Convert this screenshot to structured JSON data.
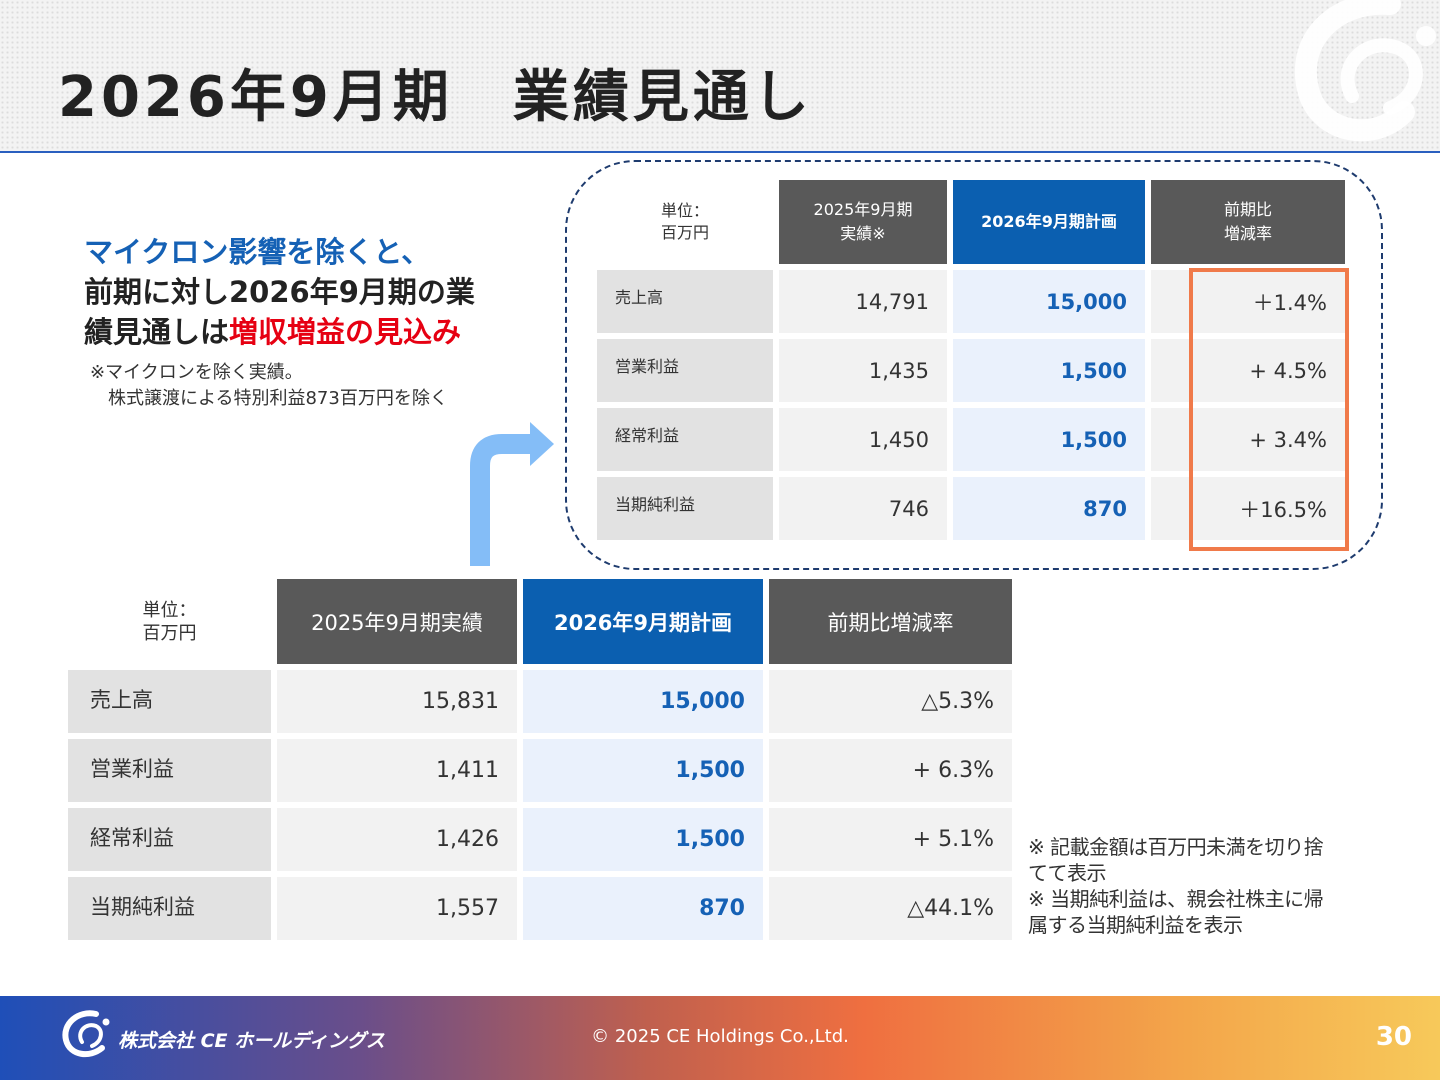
{
  "slide": {
    "title": "2026年9月期　業績見通し",
    "page_number": "30"
  },
  "callout": {
    "line1": "マイクロン影響を除くと、",
    "line2": "前期に対し2026年9月期の業",
    "line3_prefix": "績見通しは",
    "line3_emphasis": "増収増益の見込み",
    "note": "※マイクロンを除く実績。\n　株式譲渡による特別利益873百万円を除く"
  },
  "top_table": {
    "unit": "単位：\n百万円",
    "headers": [
      "2025年9月期\n実績※",
      "2026年9月期計画",
      "前期比\n増減率"
    ],
    "rows": [
      {
        "label": "売上高",
        "actual": "14,791",
        "plan": "15,000",
        "change": "＋1.4%"
      },
      {
        "label": "営業利益",
        "actual": "1,435",
        "plan": "1,500",
        "change": "+ 4.5%"
      },
      {
        "label": "経常利益",
        "actual": "1,450",
        "plan": "1,500",
        "change": "+ 3.4%"
      },
      {
        "label": "当期純利益",
        "actual": "746",
        "plan": "870",
        "change": "＋16.5%"
      }
    ]
  },
  "bottom_table": {
    "unit": "単位：\n百万円",
    "headers": [
      "2025年9月期実績",
      "2026年9月期計画",
      "前期比増減率"
    ],
    "rows": [
      {
        "label": "売上高",
        "actual": "15,831",
        "plan": "15,000",
        "change": "△5.3%"
      },
      {
        "label": "営業利益",
        "actual": "1,411",
        "plan": "1,500",
        "change": "+ 6.3%"
      },
      {
        "label": "経常利益",
        "actual": "1,426",
        "plan": "1,500",
        "change": "+ 5.1%"
      },
      {
        "label": "当期純利益",
        "actual": "1,557",
        "plan": "870",
        "change": "△44.1%"
      }
    ]
  },
  "footnotes": [
    "※ 記載金額は百万円未満を切り捨てて表示",
    "※ 当期純利益は、親会社株主に帰属する当期純利益を表示"
  ],
  "footer": {
    "company": "株式会社 CE ホールディングス",
    "copyright": "© 2025 CE Holdings Co.,Ltd."
  },
  "colors": {
    "accent_blue": "#0b5fb0",
    "emphasis_red": "#e60012",
    "highlight_orange": "#f07a4a",
    "header_gray": "#595959"
  },
  "icons": {
    "header": "ce-logo-mark-icon",
    "arrow": "curved-up-right-arrow-icon",
    "footer": "ce-logo-icon"
  }
}
